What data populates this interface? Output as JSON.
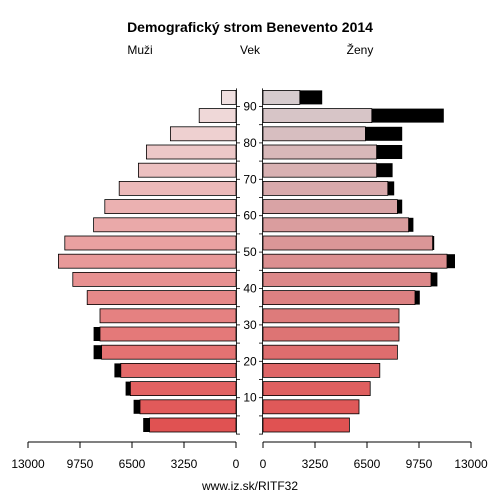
{
  "chart_data": {
    "type": "bar",
    "title": "Demografický strom Benevento 2014",
    "labels": {
      "left": "Muži",
      "center": "Vek",
      "right": "Ženy"
    },
    "x_range": [
      0,
      13000
    ],
    "x_ticks": {
      "left": [
        "13000",
        "9750",
        "6500",
        "3250",
        "0"
      ],
      "right": [
        "0",
        "3250",
        "6500",
        "9750",
        "13000"
      ]
    },
    "x_tick_values": [
      0,
      3250,
      6500,
      9750,
      13000
    ],
    "y_ticks": [
      "10",
      "20",
      "30",
      "40",
      "50",
      "60",
      "70",
      "80",
      "90"
    ],
    "y_tick_values": [
      10,
      20,
      30,
      40,
      50,
      60,
      70,
      80,
      90
    ],
    "age_groups": [
      0,
      5,
      10,
      15,
      20,
      25,
      30,
      35,
      40,
      45,
      50,
      55,
      60,
      65,
      70,
      75,
      80,
      85,
      90
    ],
    "series": [
      {
        "name": "Muži",
        "values": [
          5400,
          6000,
          6600,
          7200,
          8400,
          8500,
          8500,
          9300,
          10200,
          11100,
          10700,
          8900,
          8200,
          7300,
          6100,
          5600,
          4100,
          2300,
          900
        ],
        "excess": [
          400,
          400,
          300,
          400,
          500,
          400,
          0,
          0,
          0,
          0,
          0,
          0,
          0,
          0,
          0,
          0,
          0,
          0,
          0
        ]
      },
      {
        "name": "Ženy",
        "values": [
          5400,
          6000,
          6700,
          7300,
          8400,
          8500,
          8500,
          9500,
          10500,
          11500,
          10600,
          9100,
          8400,
          7800,
          7100,
          7100,
          6400,
          6800,
          2300
        ],
        "excess": [
          0,
          0,
          0,
          0,
          0,
          0,
          0,
          300,
          400,
          500,
          100,
          300,
          300,
          400,
          1000,
          1600,
          2300,
          4500,
          1400
        ]
      }
    ]
  },
  "footer": "www.iz.sk/RITF32"
}
